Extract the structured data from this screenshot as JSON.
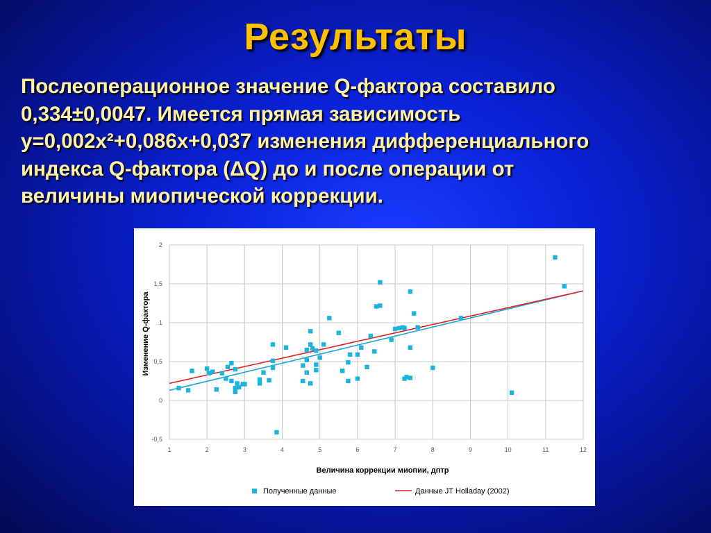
{
  "slide": {
    "title": "Результаты",
    "text_lines": [
      "Послеоперационное значение Q-фактора составило",
      "0,334±0,0047. Имеется прямая зависимость",
      "y=0,002x²+0,086x+0,037 изменения дифференциального",
      "индекса Q-фактора (ΔQ) до и после операции от",
      "величины миопической коррекции."
    ]
  },
  "colors": {
    "title": "#ffc000",
    "text": "#fff2a8",
    "points": "#1cb4dc",
    "trend_points": "#1ba3d8",
    "trend_holladay": "#e02020"
  },
  "chart_data": {
    "type": "scatter",
    "title": "",
    "xlabel": "Величина  коррекции миопии, дптр",
    "ylabel": "Изменение Q-фактора",
    "xlim": [
      1,
      12
    ],
    "ylim": [
      -0.5,
      2
    ],
    "x_ticks": [
      "1",
      "2",
      "3",
      "4",
      "5",
      "6",
      "7",
      "8",
      "9",
      "10",
      "11",
      "12"
    ],
    "y_ticks": [
      {
        "value": -0.5,
        "label": "-0,5"
      },
      {
        "value": 0,
        "label": "0"
      },
      {
        "value": 0.5,
        "label": "0,5"
      },
      {
        "value": 1,
        "label": "1"
      },
      {
        "value": 1.5,
        "label": "1,5"
      },
      {
        "value": 2,
        "label": "2"
      }
    ],
    "grid": true,
    "legend_position": "bottom",
    "series": [
      {
        "name": "Полученные данные",
        "kind": "points",
        "points": [
          [
            1.25,
            0.16
          ],
          [
            1.5,
            0.13
          ],
          [
            1.6,
            0.38
          ],
          [
            2.0,
            0.41
          ],
          [
            2.05,
            0.35
          ],
          [
            2.15,
            0.37
          ],
          [
            2.25,
            0.14
          ],
          [
            2.4,
            0.35
          ],
          [
            2.5,
            0.28
          ],
          [
            2.55,
            0.43
          ],
          [
            2.65,
            0.48
          ],
          [
            2.65,
            0.25
          ],
          [
            2.75,
            0.4
          ],
          [
            2.75,
            0.16
          ],
          [
            2.75,
            0.11
          ],
          [
            2.8,
            0.22
          ],
          [
            2.85,
            0.17
          ],
          [
            2.95,
            0.21
          ],
          [
            3.0,
            0.21
          ],
          [
            3.4,
            0.27
          ],
          [
            3.4,
            0.22
          ],
          [
            3.5,
            0.36
          ],
          [
            3.65,
            0.26
          ],
          [
            3.75,
            0.72
          ],
          [
            3.75,
            0.51
          ],
          [
            3.75,
            0.42
          ],
          [
            3.85,
            -0.41
          ],
          [
            4.1,
            0.68
          ],
          [
            4.55,
            0.25
          ],
          [
            4.55,
            0.45
          ],
          [
            4.65,
            0.52
          ],
          [
            4.65,
            0.36
          ],
          [
            4.65,
            0.65
          ],
          [
            4.75,
            0.89
          ],
          [
            4.75,
            0.72
          ],
          [
            4.75,
            0.22
          ],
          [
            4.8,
            0.67
          ],
          [
            4.9,
            0.46
          ],
          [
            4.9,
            0.39
          ],
          [
            4.9,
            0.64
          ],
          [
            5.0,
            0.55
          ],
          [
            5.1,
            0.72
          ],
          [
            5.25,
            1.06
          ],
          [
            5.5,
            0.87
          ],
          [
            5.6,
            0.38
          ],
          [
            5.75,
            0.49
          ],
          [
            5.75,
            0.25
          ],
          [
            5.8,
            0.59
          ],
          [
            6.0,
            0.59
          ],
          [
            6.0,
            0.28
          ],
          [
            6.1,
            0.68
          ],
          [
            6.25,
            0.43
          ],
          [
            6.35,
            0.83
          ],
          [
            6.45,
            0.63
          ],
          [
            6.5,
            1.21
          ],
          [
            6.6,
            1.52
          ],
          [
            6.6,
            1.22
          ],
          [
            6.9,
            0.78
          ],
          [
            7.0,
            0.92
          ],
          [
            7.1,
            0.93
          ],
          [
            7.2,
            0.94
          ],
          [
            7.25,
            0.28
          ],
          [
            7.25,
            0.93
          ],
          [
            7.3,
            0.3
          ],
          [
            7.4,
            0.29
          ],
          [
            7.4,
            0.68
          ],
          [
            7.4,
            1.4
          ],
          [
            7.5,
            1.12
          ],
          [
            7.6,
            0.94
          ],
          [
            8.0,
            0.42
          ],
          [
            8.75,
            1.06
          ],
          [
            10.1,
            0.1
          ],
          [
            11.25,
            1.84
          ],
          [
            11.5,
            1.47
          ]
        ]
      },
      {
        "name": "",
        "kind": "linear_trend",
        "points": [
          [
            1,
            0.13
          ],
          [
            12,
            1.41
          ]
        ]
      },
      {
        "name": "Данные JT Holladay (2002)",
        "kind": "line",
        "points": [
          [
            1,
            0.22
          ],
          [
            12,
            1.41
          ]
        ]
      }
    ]
  }
}
